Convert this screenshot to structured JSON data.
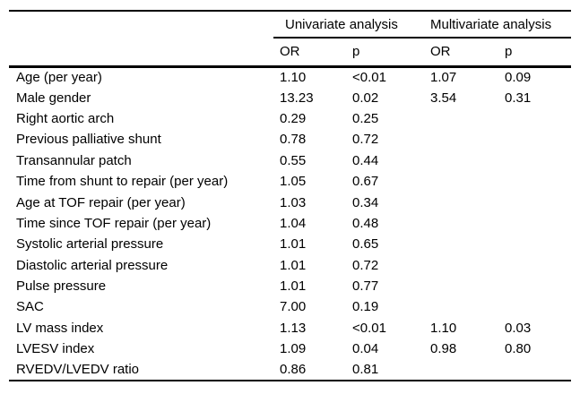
{
  "table": {
    "group_headers": [
      {
        "label": "Univariate analysis"
      },
      {
        "label": "Multivariate analysis"
      }
    ],
    "sub_headers": [
      "OR",
      "p",
      "OR",
      "p"
    ],
    "rows": [
      {
        "label": "Age (per year)",
        "uni_or": "1.10",
        "uni_p": "<0.01",
        "multi_or": "1.07",
        "multi_p": "0.09"
      },
      {
        "label": "Male gender",
        "uni_or": "13.23",
        "uni_p": "0.02",
        "multi_or": "3.54",
        "multi_p": "0.31"
      },
      {
        "label": "Right aortic arch",
        "uni_or": "0.29",
        "uni_p": "0.25",
        "multi_or": "",
        "multi_p": ""
      },
      {
        "label": "Previous palliative shunt",
        "uni_or": "0.78",
        "uni_p": "0.72",
        "multi_or": "",
        "multi_p": ""
      },
      {
        "label": "Transannular patch",
        "uni_or": "0.55",
        "uni_p": "0.44",
        "multi_or": "",
        "multi_p": ""
      },
      {
        "label": "Time from shunt to repair (per year)",
        "uni_or": "1.05",
        "uni_p": "0.67",
        "multi_or": "",
        "multi_p": ""
      },
      {
        "label": "Age at TOF repair (per year)",
        "uni_or": "1.03",
        "uni_p": "0.34",
        "multi_or": "",
        "multi_p": ""
      },
      {
        "label": "Time since TOF repair (per year)",
        "uni_or": "1.04",
        "uni_p": "0.48",
        "multi_or": "",
        "multi_p": ""
      },
      {
        "label": "Systolic arterial pressure",
        "uni_or": "1.01",
        "uni_p": "0.65",
        "multi_or": "",
        "multi_p": ""
      },
      {
        "label": "Diastolic arterial pressure",
        "uni_or": "1.01",
        "uni_p": "0.72",
        "multi_or": "",
        "multi_p": ""
      },
      {
        "label": "Pulse pressure",
        "uni_or": "1.01",
        "uni_p": "0.77",
        "multi_or": "",
        "multi_p": ""
      },
      {
        "label": "SAC",
        "uni_or": "7.00",
        "uni_p": "0.19",
        "multi_or": "",
        "multi_p": ""
      },
      {
        "label": "LV mass index",
        "uni_or": "1.13",
        "uni_p": "<0.01",
        "multi_or": "1.10",
        "multi_p": "0.03"
      },
      {
        "label": "LVESV index",
        "uni_or": "1.09",
        "uni_p": "0.04",
        "multi_or": "0.98",
        "multi_p": "0.80"
      },
      {
        "label": "RVEDV/LVEDV ratio",
        "uni_or": "0.86",
        "uni_p": "0.81",
        "multi_or": "",
        "multi_p": ""
      }
    ],
    "colors": {
      "text": "#000000",
      "rule": "#000000",
      "background": "#ffffff"
    }
  }
}
